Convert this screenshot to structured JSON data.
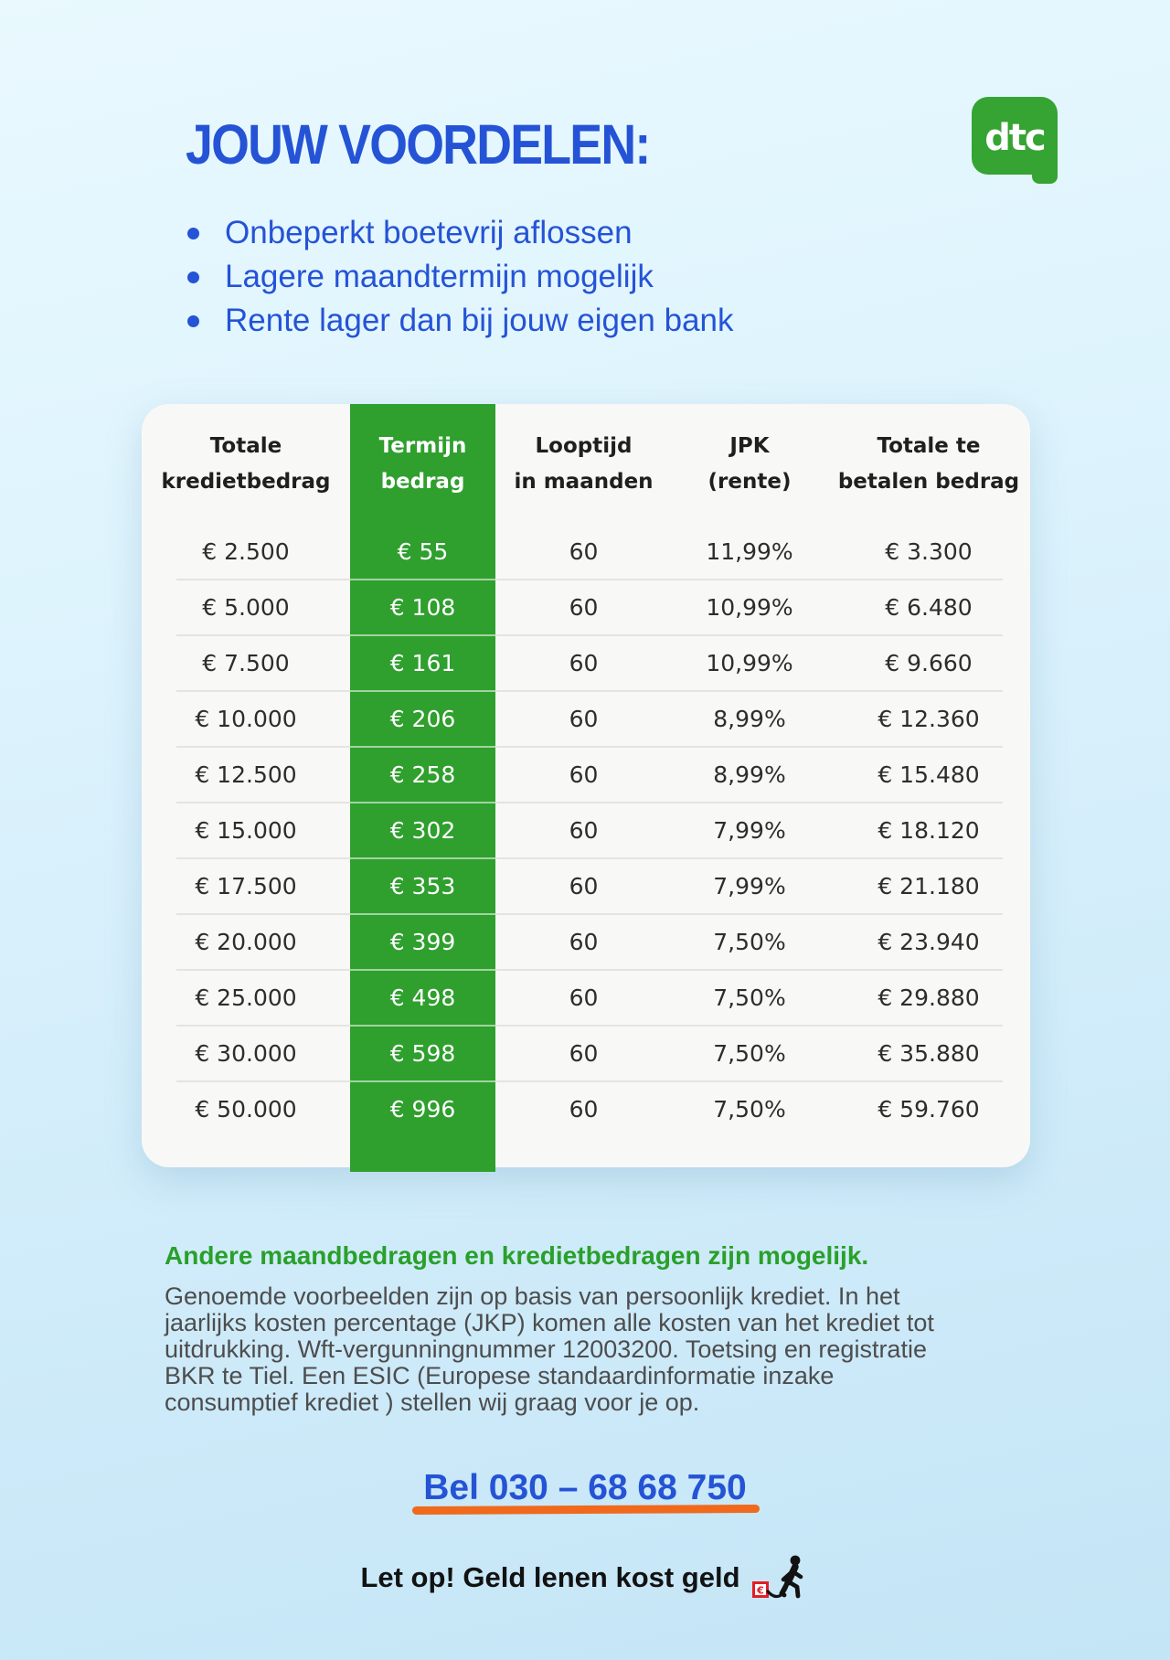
{
  "page": {
    "title": "JOUW VOORDELEN:",
    "bullets": [
      "Onbeperkt boetevrij aflossen",
      "Lagere maandtermijn mogelijk",
      "Rente lager dan bij jouw eigen bank"
    ]
  },
  "logo": {
    "text": "dtc"
  },
  "table": {
    "highlight_column": 1,
    "columns": [
      "Totale\nkredietbedrag",
      "Termijn\nbedrag",
      "Looptijd\nin maanden",
      "JPK\n(rente)",
      "Totale te\nbetalen bedrag"
    ],
    "rows": [
      [
        "€ 2.500",
        "€ 55",
        "60",
        "11,99%",
        "€ 3.300"
      ],
      [
        "€ 5.000",
        "€ 108",
        "60",
        "10,99%",
        "€ 6.480"
      ],
      [
        "€ 7.500",
        "€ 161",
        "60",
        "10,99%",
        "€ 9.660"
      ],
      [
        "€ 10.000",
        "€ 206",
        "60",
        "8,99%",
        "€ 12.360"
      ],
      [
        "€ 12.500",
        "€ 258",
        "60",
        "8,99%",
        "€ 15.480"
      ],
      [
        "€ 15.000",
        "€ 302",
        "60",
        "7,99%",
        "€ 18.120"
      ],
      [
        "€ 17.500",
        "€ 353",
        "60",
        "7,99%",
        "€ 21.180"
      ],
      [
        "€ 20.000",
        "€ 399",
        "60",
        "7,50%",
        "€ 23.940"
      ],
      [
        "€ 25.000",
        "€ 498",
        "60",
        "7,50%",
        "€ 29.880"
      ],
      [
        "€ 30.000",
        "€ 598",
        "60",
        "7,50%",
        "€ 35.880"
      ],
      [
        "€ 50.000",
        "€ 996",
        "60",
        "7,50%",
        "€ 59.760"
      ]
    ]
  },
  "footer": {
    "headline": "Andere maandbedragen en kredietbedragen zijn mogelijk.",
    "paragraph_lines": [
      "Genoemde voorbeelden zijn op basis van persoonlijk krediet. In het",
      "jaarlijks kosten percentage (JKP) komen alle kosten van het krediet tot",
      "uitdrukking. Wft-vergunningnummer 12003200. Toetsing en registratie",
      "BKR te Tiel. Een ESIC (Europese standaardinformatie inzake",
      "consumptief krediet ) stellen wij graag voor je op."
    ],
    "phone": "Bel 030 – 68 68 750",
    "warning": "Let op! Geld lenen kost geld",
    "warning_icon_euro": "€"
  },
  "icons": {
    "logo": "dtc-speech-bubble-logo",
    "warning": "person-dragging-money-weight-icon",
    "bullet": "round-bullet-dot"
  },
  "colors": {
    "accent_blue": "#2553d6",
    "table_green": "#2f9f2e",
    "logo_green": "#35a432",
    "headline_green": "#29a02a",
    "underline_orange": "#f0691c",
    "warning_red": "#e31e24"
  }
}
